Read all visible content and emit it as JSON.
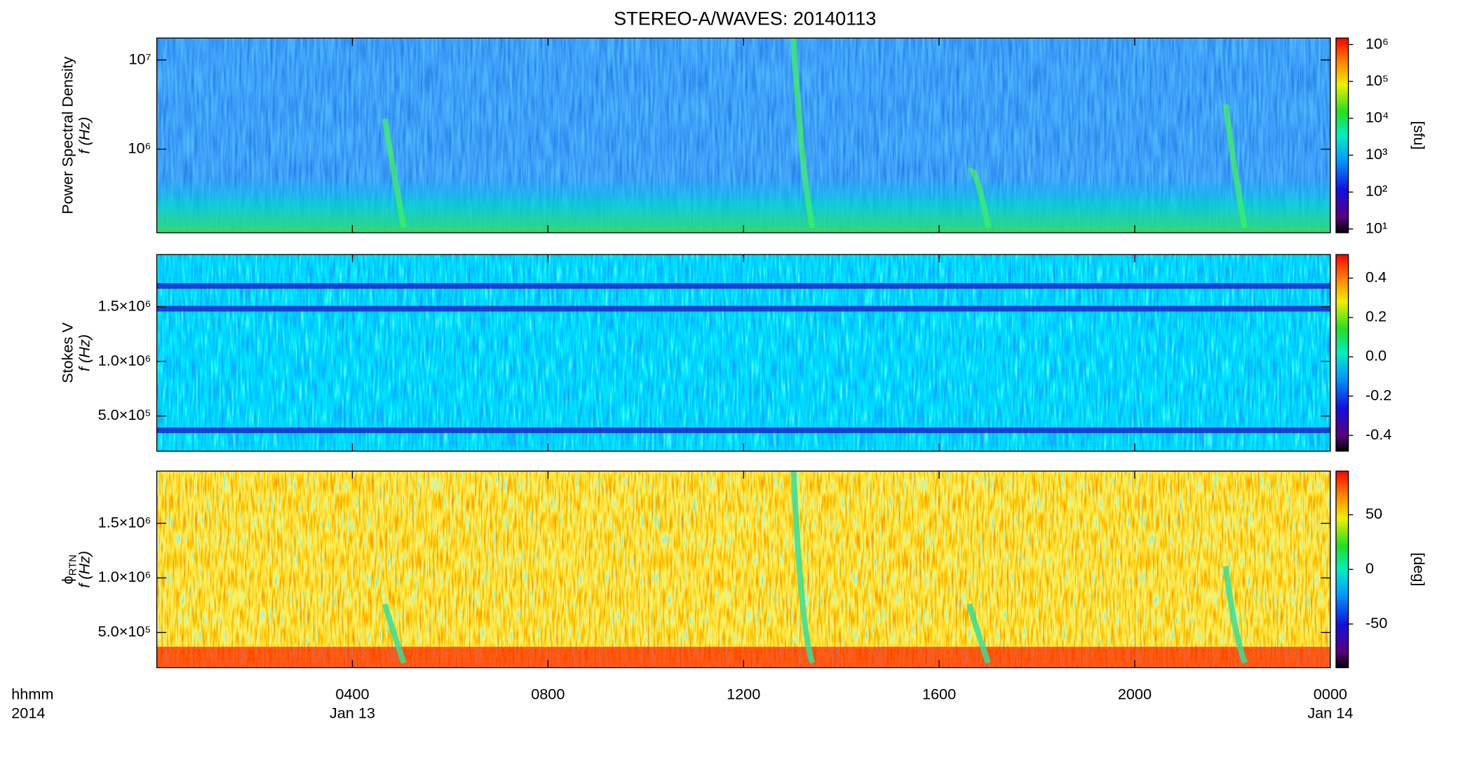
{
  "chart_data": [
    {
      "type": "spectrogram",
      "title": "STEREO-A/WAVES: 20140113",
      "ylabel": "Power Spectral Density",
      "ylabel2": "f (Hz)",
      "ylog": true,
      "ylim": [
        116000,
        17600000
      ],
      "yticks": [
        {
          "value": 1000000,
          "label": "10⁶"
        },
        {
          "value": 10000000,
          "label": "10⁷"
        }
      ],
      "colorbar": {
        "label": "[sfu]",
        "log": true,
        "lim": [
          7.9,
          1500000
        ],
        "ticks": [
          {
            "value": 10,
            "label": "10¹"
          },
          {
            "value": 100,
            "label": "10²"
          },
          {
            "value": 1000,
            "label": "10³"
          },
          {
            "value": 10000,
            "label": "10⁴"
          },
          {
            "value": 100000,
            "label": "10⁵"
          },
          {
            "value": 1000000,
            "label": "10⁶"
          }
        ]
      }
    },
    {
      "type": "spectrogram",
      "ylabel": "Stokes V",
      "ylabel2": "f (Hz)",
      "ylog": false,
      "ylim": [
        178000,
        1978000
      ],
      "yticks": [
        {
          "value": 500000,
          "label": "5.0×10⁵"
        },
        {
          "value": 1000000,
          "label": "1.0×10⁶"
        },
        {
          "value": 1500000,
          "label": "1.5×10⁶"
        }
      ],
      "colorbar": {
        "log": false,
        "lim": [
          -0.48,
          0.52
        ],
        "ticks": [
          -0.4,
          -0.2,
          {
            "value": 0,
            "label": "0.0"
          },
          0.2,
          0.4
        ]
      }
    },
    {
      "type": "spectrogram",
      "ylabel": "ϕ",
      "ylabel_sub": "RTN",
      "ylabel2": "f (Hz)",
      "ylog": false,
      "ylim": [
        178000,
        1978000
      ],
      "yticks": [
        {
          "value": 500000,
          "label": "5.0×10⁵"
        },
        {
          "value": 1000000,
          "label": "1.0×10⁶"
        },
        {
          "value": 1500000,
          "label": "1.5×10⁶"
        }
      ],
      "colorbar": {
        "label": "[deg]",
        "log": false,
        "lim": [
          -90,
          90
        ],
        "ticks": [
          -50,
          0,
          50
        ]
      },
      "xlabel": "hhmm",
      "xlabel2": "2014",
      "xlim": [
        0,
        24
      ],
      "xticks": [
        {
          "value": 4,
          "label": "0400"
        },
        {
          "value": 8,
          "label": "0800"
        },
        {
          "value": 12,
          "label": "1200"
        },
        {
          "value": 16,
          "label": "1600"
        },
        {
          "value": 20,
          "label": "2000"
        },
        {
          "value": 24,
          "label": "0000"
        }
      ],
      "xdates": [
        {
          "value": 4,
          "label": "Jan 13"
        },
        {
          "value": 24,
          "label": "Jan 14"
        }
      ]
    }
  ]
}
